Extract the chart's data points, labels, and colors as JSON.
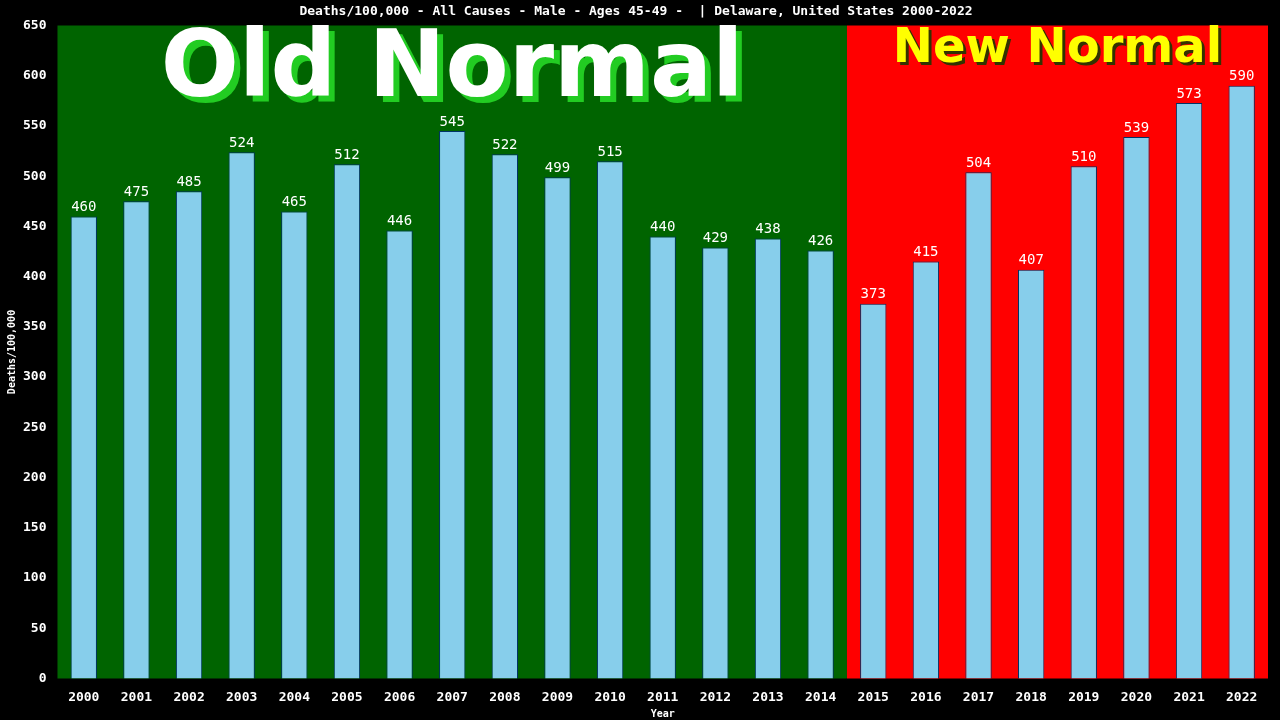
{
  "chart_data": {
    "type": "bar",
    "title": "Deaths/100,000 - All Causes - Male - Ages 45-49 -  | Delaware, United States 2000-2022",
    "xlabel": "Year",
    "ylabel": "Deaths/100,000",
    "categories": [
      "2000",
      "2001",
      "2002",
      "2003",
      "2004",
      "2005",
      "2006",
      "2007",
      "2008",
      "2009",
      "2010",
      "2011",
      "2012",
      "2013",
      "2014",
      "2015",
      "2016",
      "2017",
      "2018",
      "2019",
      "2020",
      "2021",
      "2022"
    ],
    "values": [
      460,
      475,
      485,
      524,
      465,
      512,
      446,
      545,
      522,
      499,
      515,
      440,
      429,
      438,
      426,
      373,
      415,
      504,
      407,
      510,
      539,
      573,
      590
    ],
    "color": "#87ceeb",
    "ylim": [
      0,
      650
    ],
    "yticks": [
      0,
      50,
      100,
      150,
      200,
      250,
      300,
      350,
      400,
      450,
      500,
      550,
      600,
      650
    ],
    "grid": false,
    "legend": false,
    "data_labels": true,
    "bands": [
      {
        "axis": "x",
        "from": "2000",
        "to": "2014",
        "label": "Old Normal",
        "color": "#006400"
      },
      {
        "axis": "x",
        "from": "2015",
        "to": "2022",
        "label": "New Normal",
        "color": "#ff0000"
      }
    ]
  }
}
